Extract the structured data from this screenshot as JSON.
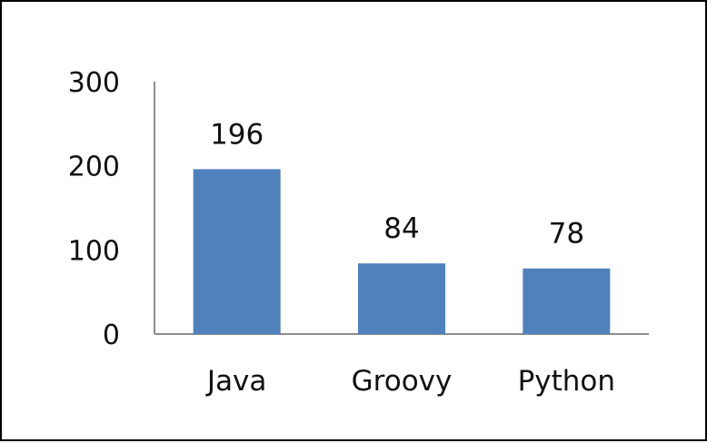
{
  "colors": {
    "bar": "#4f81bd",
    "axis": "#8c8c8c",
    "text": "#111111",
    "border": "#000000"
  },
  "chart_data": {
    "type": "bar",
    "categories": [
      "Java",
      "Groovy",
      "Python"
    ],
    "values": [
      196,
      84,
      78
    ],
    "data_labels": [
      "196",
      "84",
      "78"
    ],
    "title": "",
    "xlabel": "",
    "ylabel": "",
    "ylim": [
      0,
      300
    ],
    "yticks": [
      0,
      100,
      200,
      300
    ],
    "ytick_labels": [
      "0",
      "100",
      "200",
      "300"
    ],
    "grid": false,
    "legend": "none"
  }
}
